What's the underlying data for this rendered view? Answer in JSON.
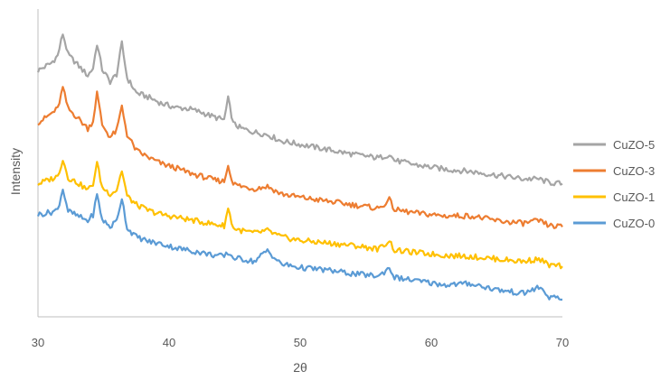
{
  "chart_data": {
    "type": "line",
    "title": "",
    "xlabel": "2θ",
    "ylabel": "Intensity",
    "xlim": [
      30,
      70
    ],
    "xticks": [
      "30",
      "40",
      "50",
      "60",
      "70"
    ],
    "y_ticks_shown": false,
    "grid": false,
    "legend_position": "right",
    "series": [
      {
        "name": "CuZO-5",
        "color": "#a5a5a5",
        "points": [
          [
            30.0,
            20.0
          ],
          [
            30.5,
            20.3
          ],
          [
            31.0,
            20.6
          ],
          [
            31.5,
            21.2
          ],
          [
            31.9,
            23.0
          ],
          [
            32.3,
            21.3
          ],
          [
            33.0,
            20.5
          ],
          [
            33.8,
            19.6
          ],
          [
            34.2,
            20.2
          ],
          [
            34.5,
            22.2
          ],
          [
            34.9,
            20.1
          ],
          [
            35.5,
            19.1
          ],
          [
            36.0,
            19.7
          ],
          [
            36.4,
            22.2
          ],
          [
            36.8,
            19.4
          ],
          [
            37.5,
            18.2
          ],
          [
            38.5,
            17.8
          ],
          [
            39.5,
            17.3
          ],
          [
            40.5,
            17.0
          ],
          [
            41.5,
            16.9
          ],
          [
            42.5,
            16.6
          ],
          [
            43.5,
            16.2
          ],
          [
            44.2,
            16.0
          ],
          [
            44.5,
            17.7
          ],
          [
            44.9,
            15.7
          ],
          [
            45.5,
            15.3
          ],
          [
            46.5,
            15.0
          ],
          [
            47.5,
            14.8
          ],
          [
            48.5,
            14.3
          ],
          [
            50.0,
            14.0
          ],
          [
            52.0,
            13.6
          ],
          [
            54.0,
            13.2
          ],
          [
            56.0,
            12.9
          ],
          [
            56.8,
            13.2
          ],
          [
            57.2,
            12.7
          ],
          [
            59.0,
            12.3
          ],
          [
            61.0,
            12.0
          ],
          [
            63.0,
            11.8
          ],
          [
            65.0,
            11.5
          ],
          [
            67.0,
            11.2
          ],
          [
            68.2,
            11.2
          ],
          [
            69.0,
            10.9
          ],
          [
            70.0,
            10.8
          ]
        ]
      },
      {
        "name": "CuZO-3",
        "color": "#ed7d31",
        "points": [
          [
            30.0,
            15.8
          ],
          [
            30.5,
            16.1
          ],
          [
            31.0,
            16.5
          ],
          [
            31.5,
            16.9
          ],
          [
            31.9,
            18.6
          ],
          [
            32.3,
            16.9
          ],
          [
            33.0,
            16.2
          ],
          [
            33.8,
            15.3
          ],
          [
            34.2,
            15.9
          ],
          [
            34.5,
            18.2
          ],
          [
            34.9,
            15.6
          ],
          [
            35.5,
            14.6
          ],
          [
            36.0,
            15.1
          ],
          [
            36.4,
            17.1
          ],
          [
            36.8,
            14.8
          ],
          [
            37.5,
            13.5
          ],
          [
            38.5,
            12.9
          ],
          [
            39.5,
            12.4
          ],
          [
            40.5,
            12.1
          ],
          [
            41.5,
            11.7
          ],
          [
            42.5,
            11.4
          ],
          [
            43.5,
            11.1
          ],
          [
            44.2,
            11.0
          ],
          [
            44.5,
            12.3
          ],
          [
            44.9,
            10.8
          ],
          [
            45.5,
            10.6
          ],
          [
            46.5,
            10.4
          ],
          [
            47.5,
            10.6
          ],
          [
            48.5,
            10.0
          ],
          [
            50.0,
            9.7
          ],
          [
            52.0,
            9.4
          ],
          [
            54.0,
            9.1
          ],
          [
            56.0,
            8.8
          ],
          [
            56.8,
            9.5
          ],
          [
            57.2,
            8.7
          ],
          [
            59.0,
            8.4
          ],
          [
            61.0,
            8.2
          ],
          [
            63.0,
            8.2
          ],
          [
            65.0,
            7.8
          ],
          [
            67.0,
            7.6
          ],
          [
            68.2,
            7.8
          ],
          [
            69.0,
            7.4
          ],
          [
            70.0,
            7.3
          ]
        ]
      },
      {
        "name": "CuZO-1",
        "color": "#ffc000",
        "points": [
          [
            30.0,
            10.8
          ],
          [
            30.5,
            11.0
          ],
          [
            31.0,
            11.2
          ],
          [
            31.5,
            11.4
          ],
          [
            31.9,
            12.8
          ],
          [
            32.3,
            11.3
          ],
          [
            33.0,
            10.9
          ],
          [
            33.8,
            10.3
          ],
          [
            34.2,
            10.8
          ],
          [
            34.5,
            12.5
          ],
          [
            34.9,
            10.5
          ],
          [
            35.5,
            10.0
          ],
          [
            36.0,
            10.3
          ],
          [
            36.4,
            11.9
          ],
          [
            36.8,
            9.8
          ],
          [
            37.5,
            9.1
          ],
          [
            38.5,
            8.6
          ],
          [
            39.5,
            8.3
          ],
          [
            40.5,
            8.1
          ],
          [
            41.5,
            7.9
          ],
          [
            42.5,
            7.7
          ],
          [
            43.5,
            7.5
          ],
          [
            44.2,
            7.4
          ],
          [
            44.5,
            8.8
          ],
          [
            44.9,
            7.2
          ],
          [
            45.5,
            7.0
          ],
          [
            46.5,
            6.8
          ],
          [
            47.5,
            7.0
          ],
          [
            48.5,
            6.5
          ],
          [
            50.0,
            6.2
          ],
          [
            52.0,
            6.0
          ],
          [
            54.0,
            5.8
          ],
          [
            56.0,
            5.5
          ],
          [
            56.8,
            6.2
          ],
          [
            57.2,
            5.4
          ],
          [
            59.0,
            5.2
          ],
          [
            61.0,
            5.0
          ],
          [
            63.0,
            4.9
          ],
          [
            65.0,
            4.7
          ],
          [
            67.0,
            4.5
          ],
          [
            68.2,
            4.7
          ],
          [
            69.0,
            4.2
          ],
          [
            70.0,
            4.1
          ]
        ]
      },
      {
        "name": "CuZO-0",
        "color": "#5b9bd5",
        "points": [
          [
            30.0,
            8.3
          ],
          [
            30.5,
            8.4
          ],
          [
            31.0,
            8.5
          ],
          [
            31.5,
            8.7
          ],
          [
            31.9,
            10.4
          ],
          [
            32.3,
            8.6
          ],
          [
            33.0,
            8.2
          ],
          [
            33.8,
            7.8
          ],
          [
            34.2,
            8.3
          ],
          [
            34.5,
            9.9
          ],
          [
            34.9,
            7.9
          ],
          [
            35.5,
            7.3
          ],
          [
            36.0,
            7.8
          ],
          [
            36.4,
            9.7
          ],
          [
            36.8,
            7.2
          ],
          [
            37.5,
            6.5
          ],
          [
            38.5,
            6.1
          ],
          [
            39.5,
            5.9
          ],
          [
            40.5,
            5.6
          ],
          [
            41.5,
            5.4
          ],
          [
            42.5,
            5.2
          ],
          [
            43.5,
            5.0
          ],
          [
            44.2,
            4.9
          ],
          [
            44.5,
            5.2
          ],
          [
            44.9,
            4.8
          ],
          [
            45.5,
            4.7
          ],
          [
            46.5,
            4.5
          ],
          [
            47.5,
            5.4
          ],
          [
            48.5,
            4.3
          ],
          [
            50.0,
            4.0
          ],
          [
            52.0,
            3.8
          ],
          [
            54.0,
            3.5
          ],
          [
            56.0,
            3.3
          ],
          [
            56.8,
            4.0
          ],
          [
            57.2,
            3.2
          ],
          [
            59.0,
            2.9
          ],
          [
            61.0,
            2.6
          ],
          [
            63.0,
            2.7
          ],
          [
            65.0,
            2.2
          ],
          [
            67.0,
            1.9
          ],
          [
            68.2,
            2.4
          ],
          [
            69.0,
            1.6
          ],
          [
            70.0,
            1.4
          ]
        ]
      }
    ],
    "legend_order": [
      "CuZO-5",
      "CuZO-3",
      "CuZO-1",
      "CuZO-0"
    ]
  }
}
